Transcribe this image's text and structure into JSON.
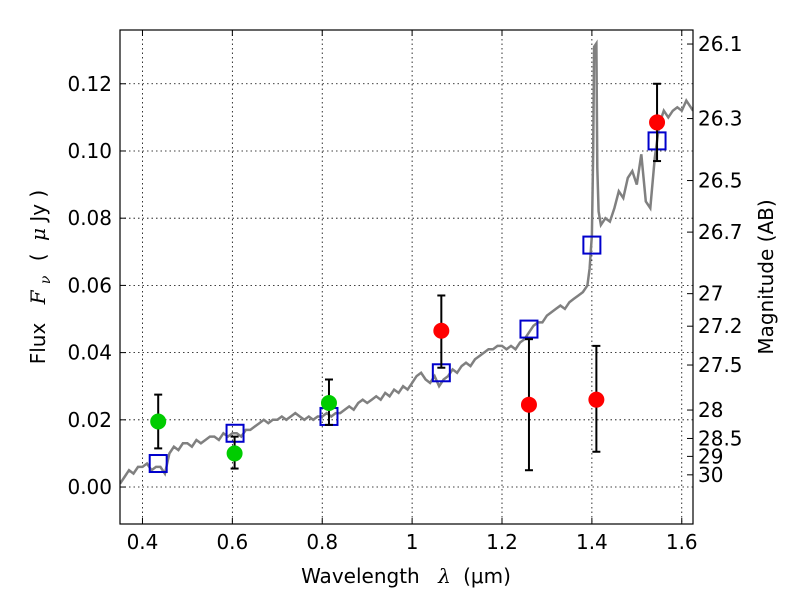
{
  "chart_data": {
    "type": "scatter",
    "xlabel_text": "Wavelength",
    "xlabel_symbol": "λ",
    "xlabel_unit": "(μm)",
    "ylabel_text": "Flux",
    "ylabel_symbol": "F",
    "ylabel_subscript": "ν",
    "ylabel_unit_open": "(",
    "ylabel_unit_mu": "μ",
    "ylabel_unit_rest": "Jy )",
    "y2label": "Magnitude (AB)",
    "xlim": [
      0.35,
      1.625
    ],
    "ylim": [
      -0.011,
      0.136
    ],
    "grid": true,
    "grid_style": "dotted",
    "x_ticks": [
      {
        "value": 0.4,
        "label": "0.4"
      },
      {
        "value": 0.6,
        "label": "0.6"
      },
      {
        "value": 0.8,
        "label": "0.8"
      },
      {
        "value": 1.0,
        "label": "1"
      },
      {
        "value": 1.2,
        "label": "1.2"
      },
      {
        "value": 1.4,
        "label": "1.4"
      },
      {
        "value": 1.6,
        "label": "1.6"
      }
    ],
    "y_ticks": [
      {
        "value": 0.0,
        "label": "0.00"
      },
      {
        "value": 0.02,
        "label": "0.02"
      },
      {
        "value": 0.04,
        "label": "0.04"
      },
      {
        "value": 0.06,
        "label": "0.06"
      },
      {
        "value": 0.08,
        "label": "0.08"
      },
      {
        "value": 0.1,
        "label": "0.10"
      },
      {
        "value": 0.12,
        "label": "0.12"
      }
    ],
    "mag_ticks": [
      {
        "value": 26.1,
        "label": "26.1"
      },
      {
        "value": 26.3,
        "label": "26.3"
      },
      {
        "value": 26.5,
        "label": "26.5"
      },
      {
        "value": 26.7,
        "label": "26.7"
      },
      {
        "value": 27.0,
        "label": "27"
      },
      {
        "value": 27.2,
        "label": "27.2"
      },
      {
        "value": 27.5,
        "label": "27.5"
      },
      {
        "value": 28.0,
        "label": "28"
      },
      {
        "value": 28.5,
        "label": "28.5"
      },
      {
        "value": 29.0,
        "label": "29"
      },
      {
        "value": 30.0,
        "label": "30"
      }
    ],
    "colors": {
      "model": "#808080",
      "green_points": "#00cc00",
      "red_points": "#ff0000",
      "squares": "#0000cc",
      "errorbar": "#000000"
    },
    "model_spectrum": [
      [
        0.35,
        0.001
      ],
      [
        0.36,
        0.003
      ],
      [
        0.37,
        0.005
      ],
      [
        0.38,
        0.004
      ],
      [
        0.39,
        0.006
      ],
      [
        0.4,
        0.006
      ],
      [
        0.41,
        0.007
      ],
      [
        0.42,
        0.005
      ],
      [
        0.43,
        0.006
      ],
      [
        0.44,
        0.006
      ],
      [
        0.45,
        0.004
      ],
      [
        0.46,
        0.01
      ],
      [
        0.47,
        0.012
      ],
      [
        0.48,
        0.011
      ],
      [
        0.49,
        0.013
      ],
      [
        0.5,
        0.013
      ],
      [
        0.51,
        0.012
      ],
      [
        0.52,
        0.014
      ],
      [
        0.53,
        0.013
      ],
      [
        0.54,
        0.014
      ],
      [
        0.55,
        0.015
      ],
      [
        0.56,
        0.015
      ],
      [
        0.57,
        0.014
      ],
      [
        0.58,
        0.016
      ],
      [
        0.59,
        0.015
      ],
      [
        0.6,
        0.016
      ],
      [
        0.61,
        0.016
      ],
      [
        0.62,
        0.015
      ],
      [
        0.63,
        0.017
      ],
      [
        0.64,
        0.017
      ],
      [
        0.65,
        0.018
      ],
      [
        0.66,
        0.019
      ],
      [
        0.67,
        0.02
      ],
      [
        0.68,
        0.019
      ],
      [
        0.69,
        0.02
      ],
      [
        0.7,
        0.02
      ],
      [
        0.71,
        0.021
      ],
      [
        0.72,
        0.02
      ],
      [
        0.73,
        0.021
      ],
      [
        0.74,
        0.022
      ],
      [
        0.75,
        0.021
      ],
      [
        0.76,
        0.02
      ],
      [
        0.77,
        0.021
      ],
      [
        0.78,
        0.02
      ],
      [
        0.79,
        0.021
      ],
      [
        0.8,
        0.021
      ],
      [
        0.81,
        0.022
      ],
      [
        0.82,
        0.021
      ],
      [
        0.83,
        0.022
      ],
      [
        0.84,
        0.022
      ],
      [
        0.85,
        0.023
      ],
      [
        0.86,
        0.024
      ],
      [
        0.87,
        0.023
      ],
      [
        0.88,
        0.025
      ],
      [
        0.89,
        0.026
      ],
      [
        0.9,
        0.025
      ],
      [
        0.91,
        0.026
      ],
      [
        0.92,
        0.027
      ],
      [
        0.93,
        0.026
      ],
      [
        0.94,
        0.028
      ],
      [
        0.95,
        0.027
      ],
      [
        0.96,
        0.029
      ],
      [
        0.97,
        0.028
      ],
      [
        0.98,
        0.03
      ],
      [
        0.99,
        0.029
      ],
      [
        1.0,
        0.031
      ],
      [
        1.01,
        0.033
      ],
      [
        1.02,
        0.034
      ],
      [
        1.03,
        0.032
      ],
      [
        1.04,
        0.031
      ],
      [
        1.05,
        0.033
      ],
      [
        1.06,
        0.03
      ],
      [
        1.07,
        0.032
      ],
      [
        1.08,
        0.033
      ],
      [
        1.09,
        0.035
      ],
      [
        1.1,
        0.034
      ],
      [
        1.11,
        0.036
      ],
      [
        1.12,
        0.037
      ],
      [
        1.13,
        0.036
      ],
      [
        1.14,
        0.038
      ],
      [
        1.15,
        0.039
      ],
      [
        1.16,
        0.04
      ],
      [
        1.17,
        0.041
      ],
      [
        1.18,
        0.041
      ],
      [
        1.19,
        0.042
      ],
      [
        1.2,
        0.042
      ],
      [
        1.21,
        0.041
      ],
      [
        1.22,
        0.042
      ],
      [
        1.23,
        0.041
      ],
      [
        1.24,
        0.043
      ],
      [
        1.25,
        0.044
      ],
      [
        1.26,
        0.046
      ],
      [
        1.27,
        0.048
      ],
      [
        1.28,
        0.049
      ],
      [
        1.29,
        0.049
      ],
      [
        1.3,
        0.051
      ],
      [
        1.31,
        0.052
      ],
      [
        1.32,
        0.053
      ],
      [
        1.33,
        0.054
      ],
      [
        1.34,
        0.053
      ],
      [
        1.35,
        0.055
      ],
      [
        1.36,
        0.056
      ],
      [
        1.37,
        0.057
      ],
      [
        1.38,
        0.058
      ],
      [
        1.39,
        0.06
      ],
      [
        1.395,
        0.065
      ],
      [
        1.4,
        0.075
      ],
      [
        1.403,
        0.1
      ],
      [
        1.405,
        0.131
      ],
      [
        1.41,
        0.132
      ],
      [
        1.412,
        0.095
      ],
      [
        1.415,
        0.082
      ],
      [
        1.42,
        0.078
      ],
      [
        1.43,
        0.08
      ],
      [
        1.44,
        0.079
      ],
      [
        1.45,
        0.083
      ],
      [
        1.46,
        0.088
      ],
      [
        1.47,
        0.086
      ],
      [
        1.48,
        0.092
      ],
      [
        1.49,
        0.094
      ],
      [
        1.5,
        0.09
      ],
      [
        1.51,
        0.099
      ],
      [
        1.52,
        0.085
      ],
      [
        1.53,
        0.083
      ],
      [
        1.54,
        0.098
      ],
      [
        1.55,
        0.108
      ],
      [
        1.56,
        0.112
      ],
      [
        1.57,
        0.11
      ],
      [
        1.58,
        0.112
      ],
      [
        1.59,
        0.113
      ],
      [
        1.6,
        0.112
      ],
      [
        1.61,
        0.115
      ],
      [
        1.62,
        0.113
      ],
      [
        1.625,
        0.112
      ]
    ],
    "green_points": [
      {
        "x": 0.435,
        "y": 0.0195,
        "yerr_low": 0.0115,
        "yerr_high": 0.0275
      },
      {
        "x": 0.605,
        "y": 0.01,
        "yerr_low": 0.0055,
        "yerr_high": 0.015
      },
      {
        "x": 0.815,
        "y": 0.025,
        "yerr_low": 0.0185,
        "yerr_high": 0.032
      }
    ],
    "red_points": [
      {
        "x": 1.065,
        "y": 0.0465,
        "yerr_low": 0.0355,
        "yerr_high": 0.057
      },
      {
        "x": 1.26,
        "y": 0.0245,
        "yerr_low": 0.005,
        "yerr_high": 0.044
      },
      {
        "x": 1.41,
        "y": 0.026,
        "yerr_low": 0.0105,
        "yerr_high": 0.042
      },
      {
        "x": 1.545,
        "y": 0.1085,
        "yerr_low": 0.097,
        "yerr_high": 0.12
      }
    ],
    "model_squares": [
      {
        "x": 0.435,
        "y": 0.007
      },
      {
        "x": 0.606,
        "y": 0.016
      },
      {
        "x": 0.815,
        "y": 0.021
      },
      {
        "x": 1.065,
        "y": 0.034
      },
      {
        "x": 1.26,
        "y": 0.047
      },
      {
        "x": 1.4,
        "y": 0.072
      },
      {
        "x": 1.545,
        "y": 0.103
      }
    ]
  }
}
